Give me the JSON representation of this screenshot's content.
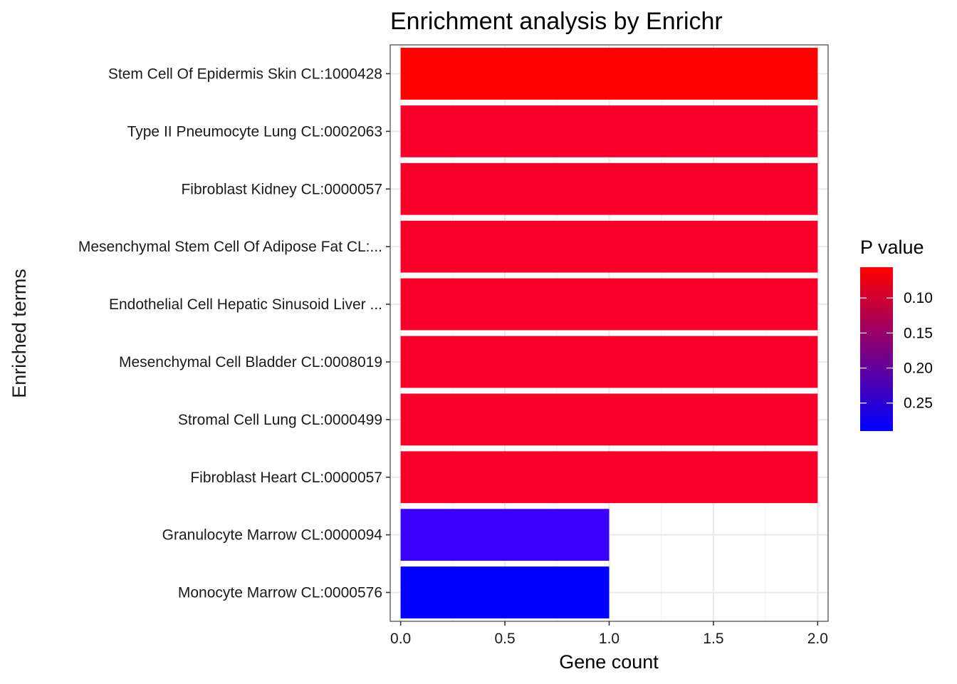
{
  "chart_data": {
    "type": "bar",
    "orientation": "horizontal",
    "title": "Enrichment analysis by Enrichr",
    "xlabel": "Gene count",
    "ylabel": "Enriched terms",
    "xlim": [
      -0.05,
      2.05
    ],
    "x_ticks": [
      "0.0",
      "0.5",
      "1.0",
      "1.5",
      "2.0"
    ],
    "x_tick_values": [
      0,
      0.5,
      1.0,
      1.5,
      2.0
    ],
    "grid": true,
    "categories": [
      "Stem Cell Of Epidermis Skin CL:1000428",
      "Type II Pneumocyte Lung CL:0002063",
      "Fibroblast Kidney CL:0000057",
      "Mesenchymal Stem Cell Of Adipose Fat CL:...",
      "Endothelial Cell Hepatic Sinusoid Liver ...",
      "Mesenchymal Cell Bladder CL:0008019",
      "Stromal Cell Lung CL:0000499",
      "Fibroblast Heart CL:0000057",
      "Granulocyte Marrow CL:0000094",
      "Monocyte Marrow CL:0000576"
    ],
    "values": [
      2,
      2,
      2,
      2,
      2,
      2,
      2,
      2,
      1,
      1
    ],
    "p_values": [
      0.056,
      0.075,
      0.075,
      0.075,
      0.075,
      0.075,
      0.075,
      0.075,
      0.27,
      0.29
    ],
    "bar_colors": [
      "#FF0000",
      "#F7002A",
      "#F7002A",
      "#F7002A",
      "#F7002A",
      "#F7002A",
      "#F7002A",
      "#F7002A",
      "#3B00F9",
      "#0000FF"
    ],
    "legend": {
      "title": "P value",
      "placement": "right",
      "ticks": [
        "0.10",
        "0.15",
        "0.20",
        "0.25"
      ],
      "tick_values": [
        0.1,
        0.15,
        0.2,
        0.25
      ],
      "range": [
        0.056,
        0.29
      ],
      "color_low": "#FF0000",
      "color_high": "#0000FF"
    }
  }
}
